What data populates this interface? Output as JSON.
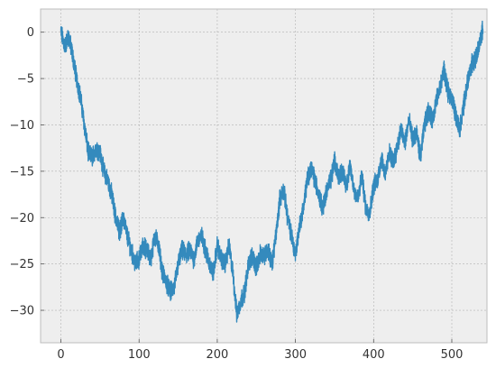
{
  "chart_data": {
    "type": "line",
    "title": "",
    "xlabel": "",
    "ylabel": "",
    "xlim": [
      -26,
      545
    ],
    "ylim": [
      -33.5,
      2.5
    ],
    "x_ticks": [
      0,
      100,
      200,
      300,
      400,
      500
    ],
    "y_ticks": [
      0,
      -5,
      -10,
      -15,
      -20,
      -25,
      -30
    ],
    "x_tick_labels": [
      "0",
      "100",
      "200",
      "300",
      "400",
      "500"
    ],
    "y_tick_labels": [
      "0",
      "−5",
      "−10",
      "−15",
      "−20",
      "−25",
      "−30"
    ],
    "grid": true,
    "legend": "none",
    "series": [
      {
        "color": "#348ABD",
        "x": [
          0,
          5,
          10,
          15,
          20,
          25,
          30,
          35,
          40,
          45,
          50,
          55,
          60,
          65,
          70,
          75,
          80,
          85,
          90,
          95,
          100,
          105,
          110,
          115,
          120,
          125,
          130,
          135,
          140,
          145,
          150,
          155,
          160,
          165,
          170,
          175,
          180,
          185,
          190,
          195,
          200,
          205,
          210,
          215,
          220,
          225,
          230,
          235,
          240,
          245,
          250,
          255,
          260,
          265,
          270,
          275,
          280,
          285,
          290,
          295,
          300,
          305,
          310,
          315,
          320,
          325,
          330,
          335,
          340,
          345,
          350,
          355,
          360,
          365,
          370,
          375,
          380,
          385,
          390,
          395,
          400,
          405,
          410,
          415,
          420,
          425,
          430,
          435,
          440,
          445,
          450,
          455,
          460,
          465,
          470,
          475,
          480,
          485,
          490,
          495,
          500,
          505,
          510,
          515,
          520,
          525,
          530,
          535,
          540
        ],
        "values": [
          0,
          -1.5,
          -0.5,
          -2.5,
          -5,
          -7,
          -10,
          -13,
          -13.5,
          -12.5,
          -13,
          -15,
          -16,
          -17.5,
          -20,
          -21.5,
          -20,
          -22,
          -23.5,
          -25,
          -24.5,
          -23,
          -23.5,
          -24.5,
          -22,
          -23,
          -26,
          -27,
          -28,
          -27.5,
          -25,
          -23.5,
          -24,
          -23.5,
          -24.5,
          -22.5,
          -22,
          -23.5,
          -25,
          -26,
          -23,
          -24.5,
          -25,
          -23,
          -26,
          -30.5,
          -29,
          -28,
          -25,
          -24,
          -25.5,
          -24,
          -24,
          -23.5,
          -25,
          -22,
          -18,
          -17,
          -20,
          -22,
          -24,
          -21,
          -19,
          -16,
          -14.5,
          -16,
          -17.5,
          -19,
          -17,
          -16,
          -14,
          -15.5,
          -15,
          -16.5,
          -14.5,
          -17,
          -18,
          -15.5,
          -19,
          -19.5,
          -16.5,
          -16,
          -13.5,
          -15.5,
          -13,
          -14,
          -12.5,
          -10.5,
          -12,
          -9.5,
          -11.5,
          -11,
          -13.5,
          -10,
          -8.5,
          -9.5,
          -7.5,
          -6,
          -4,
          -6.5,
          -7,
          -9,
          -10.5,
          -8,
          -5.5,
          -3.5,
          -3,
          -1.5,
          0.5
        ]
      }
    ]
  }
}
